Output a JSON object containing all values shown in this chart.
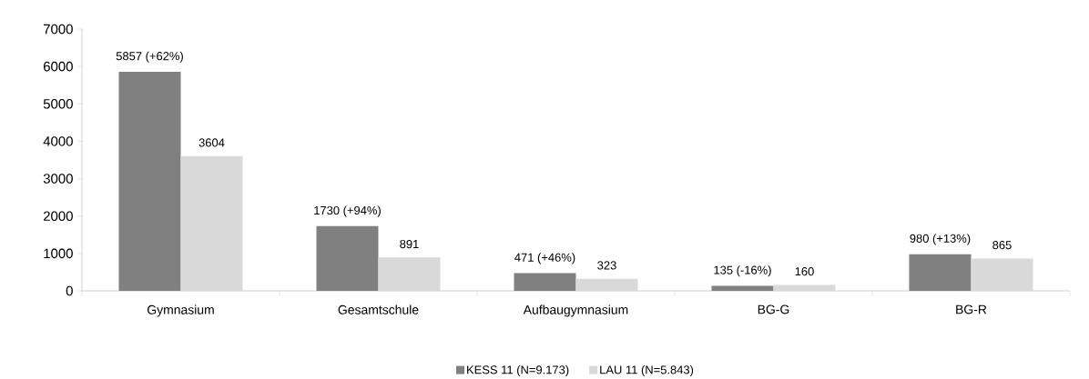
{
  "chart_data": {
    "type": "bar",
    "categories": [
      "Gymnasium",
      "Gesamtschule",
      "Aufbaugymnasium",
      "BG-G",
      "BG-R"
    ],
    "series": [
      {
        "name": "KESS 11 (N=9.173)",
        "color": "#808080",
        "values": [
          5857,
          1730,
          471,
          135,
          980
        ],
        "value_labels": [
          "5857 (+62%)",
          "1730 (+94%)",
          "471 (+46%)",
          "135 (-16%)",
          "980 (+13%)"
        ]
      },
      {
        "name": "LAU 11 (N=5.843)",
        "color": "#d9d9d9",
        "values": [
          3604,
          891,
          323,
          160,
          865
        ],
        "value_labels": [
          "3604",
          "891",
          "323",
          "160",
          "865"
        ]
      }
    ],
    "ylim": [
      0,
      7000
    ],
    "yticks": [
      0,
      1000,
      2000,
      3000,
      4000,
      5000,
      6000,
      7000
    ],
    "grid": false,
    "legend": "bottom"
  }
}
